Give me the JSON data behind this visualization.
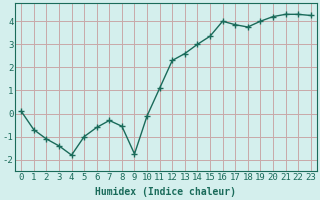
{
  "xlabel": "Humidex (Indice chaleur)",
  "x": [
    0,
    1,
    2,
    3,
    4,
    5,
    6,
    7,
    8,
    9,
    10,
    11,
    12,
    13,
    14,
    15,
    16,
    17,
    18,
    19,
    20,
    21,
    22,
    23
  ],
  "y": [
    0.1,
    -0.7,
    -1.1,
    -1.4,
    -1.8,
    -1.0,
    -0.6,
    -0.3,
    -0.55,
    -1.75,
    -0.1,
    1.1,
    2.3,
    2.6,
    3.0,
    3.35,
    4.0,
    3.85,
    3.75,
    4.0,
    4.2,
    4.3,
    4.3,
    4.25
  ],
  "line_color": "#1a6b5a",
  "marker": "+",
  "markersize": 4,
  "linewidth": 1.0,
  "bg_color": "#d4efed",
  "major_grid_color": "#c8a8a8",
  "minor_grid_color": "#c8dcd8",
  "tick_color": "#1a6b5a",
  "label_color": "#1a6b5a",
  "ylim": [
    -2.5,
    4.8
  ],
  "xlim": [
    -0.5,
    23.5
  ],
  "yticks": [
    -2,
    -1,
    0,
    1,
    2,
    3,
    4
  ],
  "xticks": [
    0,
    1,
    2,
    3,
    4,
    5,
    6,
    7,
    8,
    9,
    10,
    11,
    12,
    13,
    14,
    15,
    16,
    17,
    18,
    19,
    20,
    21,
    22,
    23
  ],
  "fontsize_label": 7,
  "fontsize_tick": 6.5
}
